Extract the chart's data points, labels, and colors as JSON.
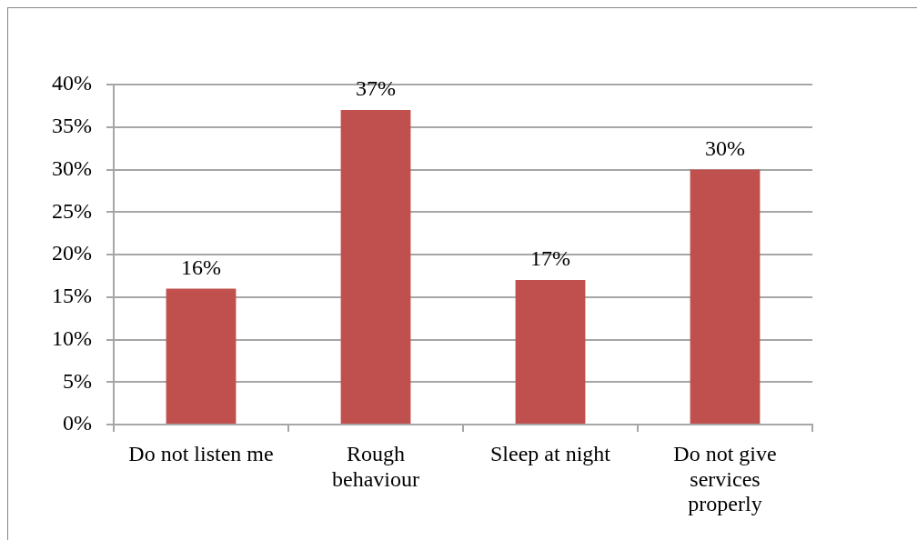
{
  "chart_data": {
    "type": "bar",
    "categories": [
      "Do not listen me",
      "Rough behaviour",
      "Sleep at night",
      "Do not give services properly"
    ],
    "values": [
      16,
      37,
      17,
      30
    ],
    "color": "#c0504d",
    "value_labels": [
      "16%",
      "37%",
      "17%",
      "30%"
    ],
    "ylim": [
      0,
      40
    ],
    "yticks": [
      {
        "value": 0,
        "label": "0%"
      },
      {
        "value": 5,
        "label": "5%"
      },
      {
        "value": 10,
        "label": "10%"
      },
      {
        "value": 15,
        "label": "15%"
      },
      {
        "value": 20,
        "label": "20%"
      },
      {
        "value": 25,
        "label": "25%"
      },
      {
        "value": 30,
        "label": "30%"
      },
      {
        "value": 35,
        "label": "35%"
      },
      {
        "value": 40,
        "label": "40%"
      }
    ],
    "grid": "y"
  }
}
